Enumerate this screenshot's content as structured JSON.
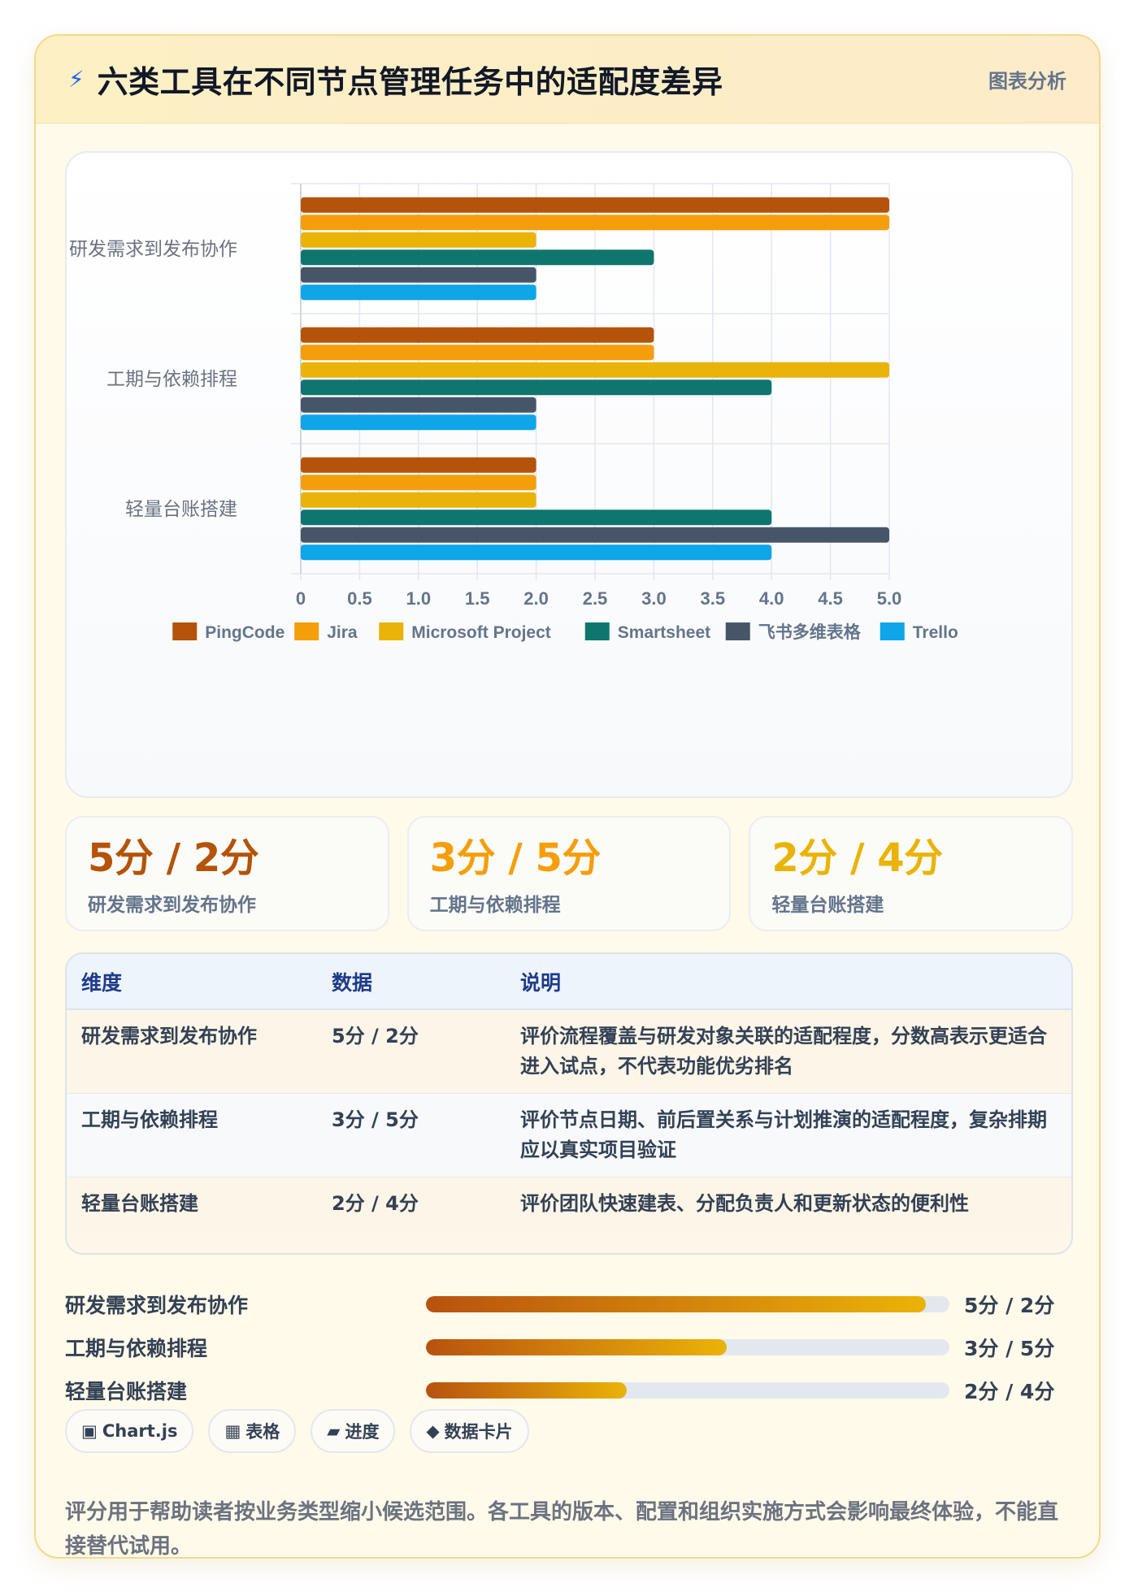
{
  "header": {
    "icon": "bolt-icon",
    "title": "六类工具在不同节点管理任务中的适配度差异",
    "tag": "图表分析"
  },
  "chart_data": {
    "type": "bar",
    "orientation": "horizontal",
    "categories": [
      "研发需求到发布协作",
      "工期与依赖排程",
      "轻量台账搭建"
    ],
    "series": [
      {
        "name": "PingCode",
        "color": "#b45309",
        "values": [
          5,
          3,
          2
        ]
      },
      {
        "name": "Jira",
        "color": "#f59e0b",
        "values": [
          5,
          3,
          2
        ]
      },
      {
        "name": "Microsoft Project",
        "color": "#eab308",
        "values": [
          2,
          5,
          2
        ]
      },
      {
        "name": "Smartsheet",
        "color": "#0f766e",
        "values": [
          3,
          4,
          4
        ]
      },
      {
        "name": "飞书多维表格",
        "color": "#475569",
        "values": [
          2,
          2,
          5
        ]
      },
      {
        "name": "Trello",
        "color": "#0ea5e9",
        "values": [
          2,
          2,
          4
        ]
      }
    ],
    "xlim": [
      0,
      5
    ],
    "ticks": [
      "0",
      "0.5",
      "1.0",
      "1.5",
      "2.0",
      "2.5",
      "3.0",
      "3.5",
      "4.0",
      "4.5",
      "5.0"
    ],
    "tick_values": [
      0,
      0.5,
      1,
      1.5,
      2,
      2.5,
      3,
      3.5,
      4,
      4.5,
      5
    ],
    "grid": true,
    "legend": "bottom"
  },
  "stats": [
    {
      "value": "5分 / 2分",
      "label": "研发需求到发布协作",
      "color": "#b45309"
    },
    {
      "value": "3分 / 5分",
      "label": "工期与依赖排程",
      "color": "#f59e0b"
    },
    {
      "value": "2分 / 4分",
      "label": "轻量台账搭建",
      "color": "#eab308"
    }
  ],
  "table": {
    "headers": [
      "维度",
      "数据",
      "说明"
    ],
    "rows": [
      [
        "研发需求到发布协作",
        "5分 / 2分",
        "评价流程覆盖与研发对象关联的适配程度，分数高表示更适合进入试点，不代表功能优劣排名"
      ],
      [
        "工期与依赖排程",
        "3分 / 5分",
        "评价节点日期、前后置关系与计划推演的适配程度，复杂排期应以真实项目验证"
      ],
      [
        "轻量台账搭建",
        "2分 / 4分",
        "评价团队快速建表、分配负责人和更新状态的便利性"
      ]
    ]
  },
  "progress": [
    {
      "label": "研发需求到发布协作",
      "value_text": "5分 / 2分",
      "fraction": 0.955
    },
    {
      "label": "工期与依赖排程",
      "value_text": "3分 / 5分",
      "fraction": 0.575
    },
    {
      "label": "轻量台账搭建",
      "value_text": "2分 / 4分",
      "fraction": 0.383
    }
  ],
  "chips": [
    {
      "icon": "▣",
      "label": "Chart.js"
    },
    {
      "icon": "▦",
      "label": "表格"
    },
    {
      "icon": "▰",
      "label": "进度"
    },
    {
      "icon": "◆",
      "label": "数据卡片"
    }
  ],
  "footnote": "评分用于帮助读者按业务类型缩小候选范围。各工具的版本、配置和组织实施方式会影响最终体验，不能直接替代试用。"
}
